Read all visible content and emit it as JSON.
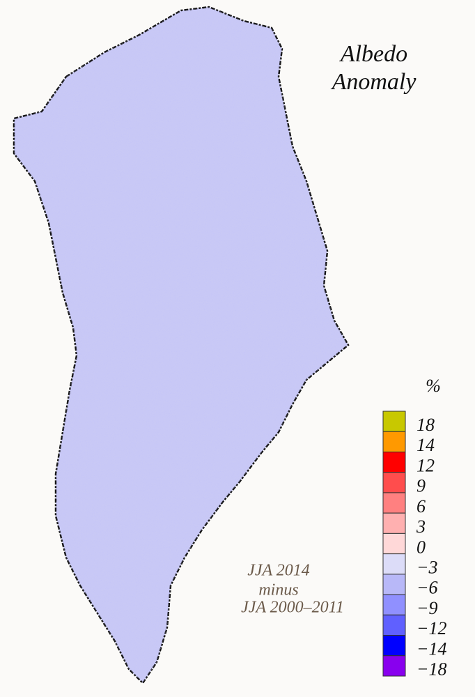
{
  "title": [
    "Albedo",
    "Anomaly"
  ],
  "annotation": [
    "JJA 2014",
    "minus",
    "JJA 2000–2011"
  ],
  "legend": {
    "unit": "%",
    "ticks": [
      18,
      14,
      12,
      9,
      6,
      3,
      0,
      {
        "value": -3,
        "label": "−3"
      },
      {
        "value": -6,
        "label": "−6"
      },
      {
        "value": -9,
        "label": "−9"
      },
      {
        "value": -12,
        "label": "−12"
      },
      {
        "value": -14,
        "label": "−14"
      },
      {
        "value": -18,
        "label": "−18"
      }
    ],
    "colors": [
      "#c8c800",
      "#ff9900",
      "#ff0000",
      "#ff4d4d",
      "#ff8080",
      "#ffb0b0",
      "#ffd8d8",
      "#dcdcf8",
      "#b8b8f8",
      "#9090ff",
      "#6060ff",
      "#0000ff",
      "#8800ee"
    ]
  }
}
